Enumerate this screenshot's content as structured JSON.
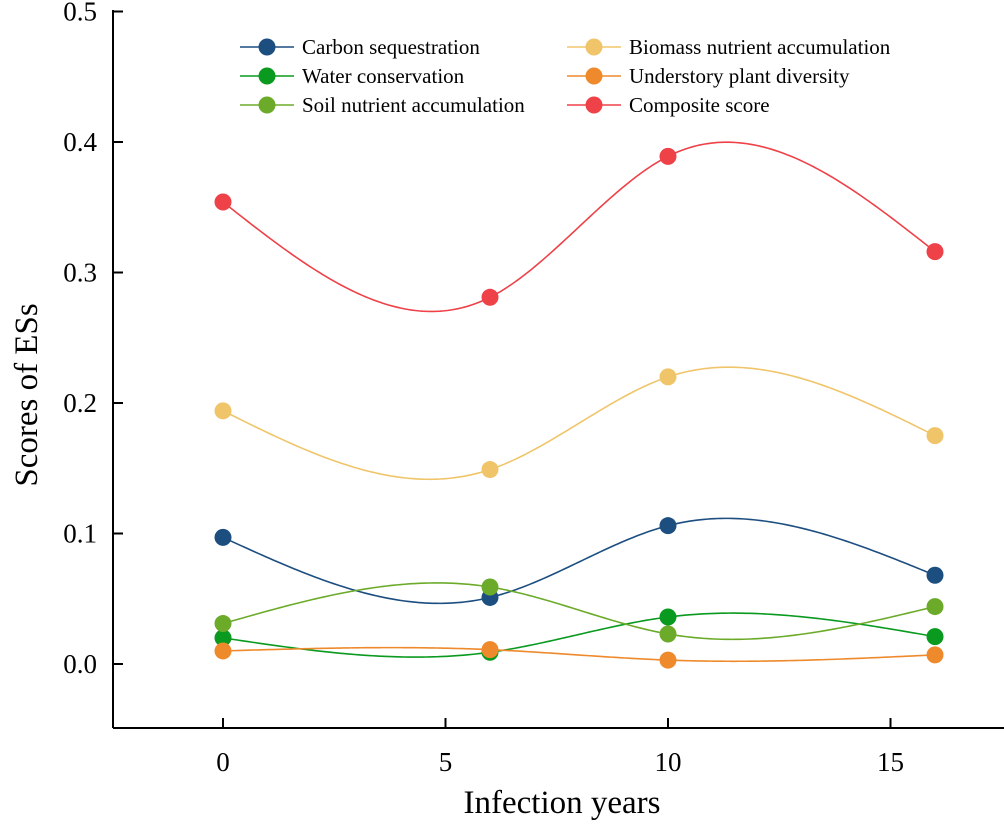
{
  "chart_data": {
    "type": "line",
    "title": "",
    "xlabel": "Infection years",
    "ylabel": "Scores of ESs",
    "xlim": [
      -2.5,
      17.5
    ],
    "ylim": [
      -0.05,
      0.5
    ],
    "xticks": [
      0,
      5,
      10,
      15
    ],
    "xtick_labels": [
      "0",
      "5",
      "10",
      "15"
    ],
    "yticks": [
      0.0,
      0.1,
      0.2,
      0.3,
      0.4,
      0.5
    ],
    "ytick_labels": [
      "0.0",
      "0.1",
      "0.2",
      "0.3",
      "0.4",
      "0.5"
    ],
    "grid": false,
    "smooth": true,
    "legend_position": "top",
    "x": [
      0,
      6,
      10,
      16
    ],
    "series": [
      {
        "name": "Carbon sequestration",
        "color": "#1c4e80",
        "values": [
          0.097,
          0.051,
          0.106,
          0.068
        ]
      },
      {
        "name": "Water conservation",
        "color": "#0a9a1f",
        "values": [
          0.02,
          0.009,
          0.036,
          0.021
        ]
      },
      {
        "name": "Soil nutrient accumulation",
        "color": "#6cab2a",
        "values": [
          0.031,
          0.059,
          0.023,
          0.044
        ]
      },
      {
        "name": "Biomass nutrient accumulation",
        "color": "#f0c56a",
        "values": [
          0.194,
          0.149,
          0.22,
          0.175
        ]
      },
      {
        "name": "Understory plant diversity",
        "color": "#ee8a2c",
        "values": [
          0.01,
          0.011,
          0.003,
          0.007
        ]
      },
      {
        "name": "Composite score",
        "color": "#ee4148",
        "values": [
          0.354,
          0.281,
          0.389,
          0.316
        ]
      }
    ]
  }
}
